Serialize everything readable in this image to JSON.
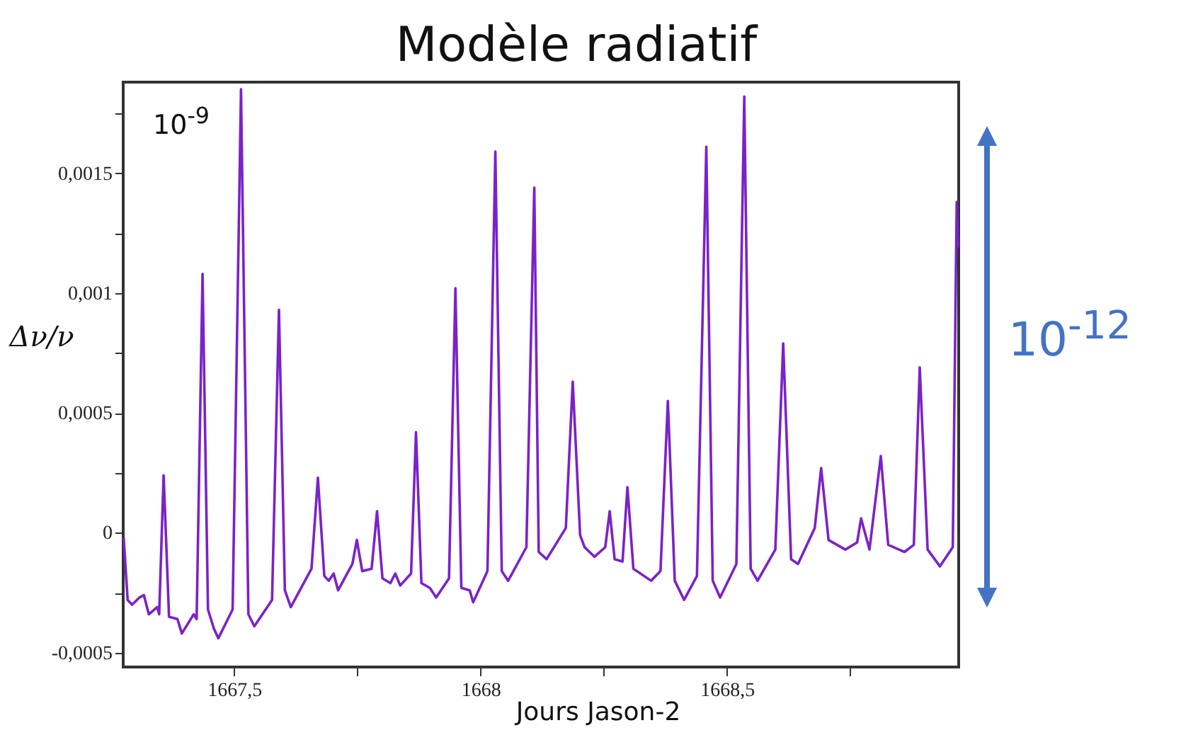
{
  "chart_data": {
    "type": "line",
    "title": "Modèle radiatif",
    "xlabel": "Jours Jason-2",
    "ylabel": "Δν/ν",
    "annotations": [
      "10$^{-9}$",
      "10$^{-12}$"
    ],
    "xlim": [
      1667.275,
      1668.97
    ],
    "xticks": [
      {
        "value": 1667.5,
        "label": "1667,5"
      },
      {
        "value": 1667.75,
        "label": null
      },
      1668,
      {
        "value": 1668.25,
        "label": null
      },
      {
        "value": 1668.5,
        "label": "1668,5"
      },
      {
        "value": 1668.75,
        "label": null
      }
    ],
    "ylim": [
      -0.00056,
      0.00188
    ],
    "yticks": [
      {
        "value": -0.0005,
        "label": "-0,0005"
      },
      {
        "value": -0.00025,
        "label": null
      },
      0,
      {
        "value": 0.00025,
        "label": null
      },
      {
        "value": 0.0005,
        "label": "0,0005"
      },
      {
        "value": 0.00075,
        "label": null
      },
      {
        "value": 0.001,
        "label": "0,001"
      },
      {
        "value": 0.00125,
        "label": null
      },
      {
        "value": 0.0015,
        "label": "0,0015"
      },
      {
        "value": 0.00175,
        "label": null
      }
    ],
    "grid": false,
    "legend": false,
    "line_style": "solid",
    "marker": "none",
    "series": [
      {
        "color": "#7b22c9",
        "x": [
          1667.276,
          1667.284,
          1667.293,
          1667.308,
          1667.317,
          1667.327,
          1667.344,
          1667.348,
          1667.357,
          1667.368,
          1667.385,
          1667.394,
          1667.418,
          1667.424,
          1667.436,
          1667.447,
          1667.459,
          1667.468,
          1667.497,
          1667.514,
          1667.529,
          1667.541,
          1667.577,
          1667.591,
          1667.603,
          1667.615,
          1667.657,
          1667.67,
          1667.683,
          1667.692,
          1667.702,
          1667.711,
          1667.74,
          1667.749,
          1667.76,
          1667.779,
          1667.79,
          1667.801,
          1667.817,
          1667.827,
          1667.837,
          1667.859,
          1667.869,
          1667.88,
          1667.897,
          1667.91,
          1667.936,
          1667.949,
          1667.961,
          1667.978,
          1667.985,
          1668.014,
          1668.03,
          1668.043,
          1668.056,
          1668.093,
          1668.109,
          1668.118,
          1668.134,
          1668.173,
          1668.187,
          1668.202,
          1668.211,
          1668.231,
          1668.253,
          1668.262,
          1668.272,
          1668.288,
          1668.298,
          1668.31,
          1668.346,
          1668.365,
          1668.38,
          1668.394,
          1668.413,
          1668.439,
          1668.458,
          1668.471,
          1668.486,
          1668.519,
          1668.535,
          1668.548,
          1668.562,
          1668.598,
          1668.614,
          1668.63,
          1668.644,
          1668.678,
          1668.691,
          1668.706,
          1668.74,
          1668.764,
          1668.772,
          1668.789,
          1668.812,
          1668.827,
          1668.86,
          1668.879,
          1668.891,
          1668.907,
          1668.932,
          1668.958,
          1668.966,
          1668.969
        ],
        "values": [
          -2e-05,
          -0.00028,
          -0.0003,
          -0.00027,
          -0.00026,
          -0.00034,
          -0.00031,
          -0.00034,
          0.00024,
          -0.00035,
          -0.00036,
          -0.00042,
          -0.00034,
          -0.00036,
          0.00108,
          -0.00032,
          -0.0004,
          -0.00044,
          -0.00032,
          0.00185,
          -0.00034,
          -0.00039,
          -0.00028,
          0.00093,
          -0.00024,
          -0.00031,
          -0.00015,
          0.00023,
          -0.00018,
          -0.0002,
          -0.00017,
          -0.00024,
          -0.00013,
          -3e-05,
          -0.00016,
          -0.00015,
          9e-05,
          -0.00019,
          -0.00021,
          -0.00017,
          -0.00022,
          -0.00017,
          0.00042,
          -0.00021,
          -0.00023,
          -0.00027,
          -0.00019,
          0.00102,
          -0.00023,
          -0.00024,
          -0.00029,
          -0.00016,
          0.00159,
          -0.00016,
          -0.0002,
          -6e-05,
          0.00144,
          -8e-05,
          -0.00011,
          2e-05,
          0.00063,
          -1e-05,
          -6e-05,
          -0.0001,
          -6e-05,
          9e-05,
          -0.00011,
          -0.00012,
          0.00019,
          -0.00015,
          -0.0002,
          -0.00016,
          0.00055,
          -0.0002,
          -0.00028,
          -0.00018,
          0.00161,
          -0.0002,
          -0.00027,
          -0.00013,
          0.00182,
          -0.00015,
          -0.0002,
          -7e-05,
          0.00079,
          -0.00011,
          -0.00013,
          2e-05,
          0.00027,
          -3e-05,
          -7e-05,
          -4e-05,
          6e-05,
          -7e-05,
          0.00032,
          -5e-05,
          -8e-05,
          -5e-05,
          0.00069,
          -7e-05,
          -0.00014,
          -6e-05,
          0.00138,
          0.00119
        ]
      }
    ]
  }
}
